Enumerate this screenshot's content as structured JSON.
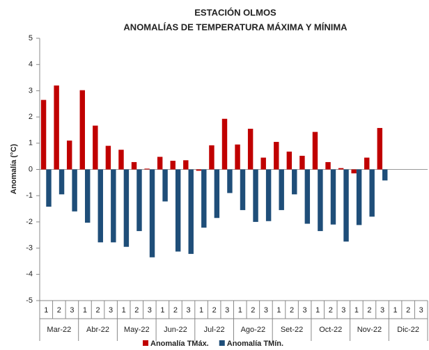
{
  "chart_data": {
    "type": "bar",
    "title": "ESTACIÓN OLMOS",
    "subtitle": "ANOMALÍAS DE TEMPERATURA MÁXIMA Y MÍNIMA",
    "y_label": "Anomalía (°C)",
    "categories": [
      "1",
      "2",
      "3",
      "1",
      "2",
      "3",
      "1",
      "2",
      "3",
      "1",
      "2",
      "3",
      "1",
      "2",
      "3",
      "1",
      "2",
      "3",
      "1",
      "2",
      "3",
      "1",
      "2",
      "3",
      "1",
      "2",
      "3",
      "1",
      "2",
      "3"
    ],
    "groups": [
      "Mar-22",
      "Abr-22",
      "May-22",
      "Jun-22",
      "Jul-22",
      "Ago-22",
      "Set-22",
      "Oct-22",
      "Nov-22",
      "Dic-22"
    ],
    "series": [
      {
        "name": "Anomalía TMáx.",
        "color": "#c00000",
        "values": [
          2.65,
          3.2,
          1.1,
          3.02,
          1.67,
          0.9,
          0.75,
          0.28,
          0.03,
          0.48,
          0.33,
          0.35,
          -0.05,
          0.92,
          1.93,
          0.95,
          1.55,
          0.45,
          1.05,
          0.68,
          0.52,
          1.43,
          0.28,
          0.05,
          -0.15,
          0.45,
          1.58,
          null,
          null,
          null
        ]
      },
      {
        "name": "Anomalía TMín.",
        "color": "#1f4e79",
        "values": [
          -1.42,
          -0.95,
          -1.6,
          -2.03,
          -2.78,
          -2.78,
          -2.95,
          -2.35,
          -3.35,
          -1.22,
          -3.13,
          -3.22,
          -2.22,
          -1.85,
          -0.9,
          -1.55,
          -2.0,
          -1.97,
          -1.55,
          -0.95,
          -2.07,
          -2.35,
          -2.1,
          -2.75,
          -2.12,
          -1.8,
          -0.42,
          null,
          null,
          null
        ]
      }
    ],
    "ylim": [
      -5,
      5
    ],
    "yticks": [
      -5,
      -4,
      -3,
      -2,
      -1,
      0,
      1,
      2,
      3,
      4,
      5
    ]
  }
}
